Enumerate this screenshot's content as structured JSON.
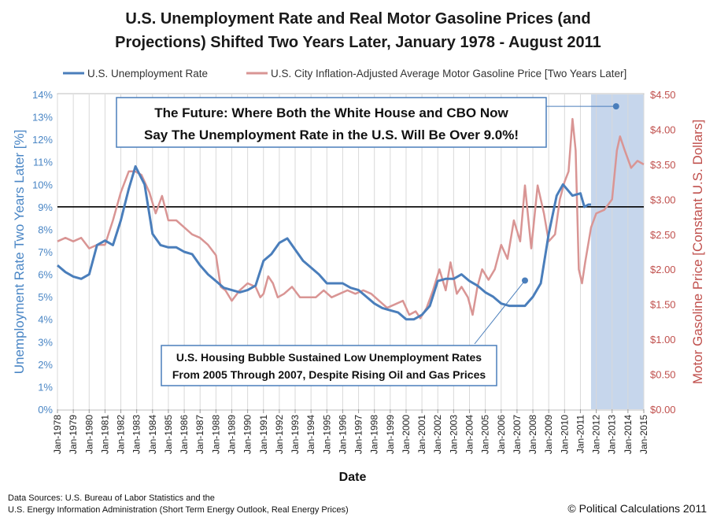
{
  "chart_data": {
    "type": "line",
    "title_line1": "U.S. Unemployment Rate and Real Motor Gasoline Prices (and",
    "title_line2": "Projections) Shifted Two Years Later, January 1978 - August 2011",
    "xlabel": "Date",
    "ylabel_left": "Unemployment Rate Two Years Later [%]",
    "ylabel_right": "Motor Gasoline Price [Constant U.S. Dollars]",
    "x_ticks": [
      "Jan-1978",
      "Jan-1979",
      "Jan-1980",
      "Jan-1981",
      "Jan-1982",
      "Jan-1983",
      "Jan-1984",
      "Jan-1985",
      "Jan-1986",
      "Jan-1987",
      "Jan-1988",
      "Jan-1989",
      "Jan-1990",
      "Jan-1991",
      "Jan-1992",
      "Jan-1993",
      "Jan-1994",
      "Jan-1995",
      "Jan-1996",
      "Jan-1997",
      "Jan-1998",
      "Jan-1999",
      "Jan-2000",
      "Jan-2001",
      "Jan-2002",
      "Jan-2003",
      "Jan-2004",
      "Jan-2005",
      "Jan-2006",
      "Jan-2007",
      "Jan-2008",
      "Jan-2009",
      "Jan-2010",
      "Jan-2011",
      "Jan-2012",
      "Jan-2013",
      "Jan-2014",
      "Jan-2015"
    ],
    "xlim": [
      1978,
      2015
    ],
    "y_left_ticks": [
      "0%",
      "1%",
      "2%",
      "3%",
      "4%",
      "5%",
      "6%",
      "7%",
      "8%",
      "9%",
      "10%",
      "11%",
      "12%",
      "13%",
      "14%"
    ],
    "ylim_left": [
      0,
      14
    ],
    "y_right_ticks": [
      "$0.00",
      "$0.50",
      "$1.00",
      "$1.50",
      "$2.00",
      "$2.50",
      "$3.00",
      "$3.50",
      "$4.00",
      "$4.50"
    ],
    "ylim_right": [
      0,
      4.5
    ],
    "reference_line_left": 9,
    "projection_shading_start": 2011.67,
    "legend_position": "top",
    "series": [
      {
        "name": "U.S. Unemployment Rate",
        "axis": "left",
        "color": "#4a7ebb",
        "x": [
          1978.0,
          1978.5,
          1979.0,
          1979.5,
          1980.0,
          1980.5,
          1981.0,
          1981.5,
          1982.0,
          1982.5,
          1982.92,
          1983.5,
          1984.0,
          1984.5,
          1985.0,
          1985.5,
          1986.0,
          1986.5,
          1987.0,
          1987.5,
          1988.0,
          1988.5,
          1989.0,
          1989.5,
          1990.0,
          1990.5,
          1991.0,
          1991.5,
          1992.0,
          1992.5,
          1993.0,
          1993.5,
          1994.0,
          1994.5,
          1995.0,
          1995.5,
          1996.0,
          1996.5,
          1997.0,
          1997.5,
          1998.0,
          1998.5,
          1999.0,
          1999.5,
          2000.0,
          2000.5,
          2001.0,
          2001.5,
          2002.0,
          2002.5,
          2003.0,
          2003.5,
          2004.0,
          2004.5,
          2005.0,
          2005.5,
          2006.0,
          2006.5,
          2007.0,
          2007.5,
          2008.0,
          2008.5,
          2009.0,
          2009.5,
          2009.9,
          2010.5,
          2011.0,
          2011.25,
          2011.5,
          2011.67
        ],
        "values": [
          6.4,
          6.1,
          5.9,
          5.8,
          6.0,
          7.3,
          7.5,
          7.3,
          8.4,
          9.8,
          10.8,
          10.0,
          7.8,
          7.3,
          7.2,
          7.2,
          7.0,
          6.9,
          6.4,
          6.0,
          5.7,
          5.4,
          5.3,
          5.2,
          5.3,
          5.5,
          6.6,
          6.9,
          7.4,
          7.6,
          7.1,
          6.6,
          6.3,
          6.0,
          5.6,
          5.6,
          5.6,
          5.4,
          5.3,
          5.0,
          4.7,
          4.5,
          4.4,
          4.3,
          4.0,
          4.0,
          4.2,
          4.6,
          5.7,
          5.8,
          5.8,
          6.0,
          5.7,
          5.5,
          5.2,
          5.0,
          4.7,
          4.6,
          4.6,
          4.6,
          5.0,
          5.6,
          7.8,
          9.5,
          10.0,
          9.5,
          9.6,
          9.0,
          9.1,
          9.1
        ]
      },
      {
        "name": "U.S. City Inflation-Adjusted Average Motor Gasoline Price [Two Years Later]",
        "axis": "right",
        "color": "#d99594",
        "x": [
          1978.0,
          1978.5,
          1979.0,
          1979.5,
          1980.0,
          1980.5,
          1981.0,
          1981.5,
          1982.0,
          1982.5,
          1982.9,
          1983.3,
          1983.8,
          1984.2,
          1984.6,
          1985.0,
          1985.5,
          1986.0,
          1986.5,
          1987.0,
          1987.5,
          1988.0,
          1988.3,
          1988.6,
          1989.0,
          1989.5,
          1990.0,
          1990.5,
          1990.8,
          1991.0,
          1991.3,
          1991.6,
          1991.9,
          1992.3,
          1992.8,
          1993.3,
          1993.8,
          1994.3,
          1994.8,
          1995.3,
          1995.8,
          1996.3,
          1996.8,
          1997.3,
          1997.8,
          1998.3,
          1998.8,
          1999.3,
          1999.8,
          2000.2,
          2000.6,
          2000.9,
          2001.3,
          2001.7,
          2002.1,
          2002.5,
          2002.8,
          2003.2,
          2003.5,
          2003.9,
          2004.2,
          2004.5,
          2004.8,
          2005.2,
          2005.6,
          2006.0,
          2006.4,
          2006.8,
          2007.2,
          2007.5,
          2007.9,
          2008.3,
          2008.7,
          2009.0,
          2009.4,
          2009.7,
          2010.0,
          2010.25,
          2010.5,
          2010.7,
          2010.9,
          2011.1,
          2011.3,
          2011.67,
          2012.0,
          2012.5,
          2013.0,
          2013.3,
          2013.5,
          2013.8,
          2014.2,
          2014.6,
          2015.0
        ],
        "values": [
          2.4,
          2.45,
          2.4,
          2.45,
          2.3,
          2.35,
          2.35,
          2.7,
          3.1,
          3.4,
          3.4,
          3.35,
          3.1,
          2.8,
          3.05,
          2.7,
          2.7,
          2.6,
          2.5,
          2.45,
          2.35,
          2.2,
          1.75,
          1.7,
          1.55,
          1.7,
          1.8,
          1.75,
          1.6,
          1.65,
          1.9,
          1.8,
          1.6,
          1.65,
          1.75,
          1.6,
          1.6,
          1.6,
          1.7,
          1.6,
          1.65,
          1.7,
          1.65,
          1.7,
          1.65,
          1.55,
          1.45,
          1.5,
          1.55,
          1.35,
          1.4,
          1.3,
          1.45,
          1.7,
          2.0,
          1.7,
          2.1,
          1.65,
          1.75,
          1.6,
          1.35,
          1.75,
          2.0,
          1.85,
          2.0,
          2.35,
          2.15,
          2.7,
          2.4,
          3.2,
          2.3,
          3.2,
          2.8,
          2.4,
          2.5,
          3.0,
          3.25,
          3.4,
          4.15,
          3.7,
          2.0,
          1.8,
          2.1,
          2.6,
          2.8,
          2.85,
          3.0,
          3.7,
          3.9,
          3.7,
          3.45,
          3.55,
          3.5
        ]
      }
    ],
    "annotations": {
      "future_line1": "The Future: Where Both the White House and CBO Now",
      "future_line2": "Say The Unemployment  Rate in the U.S. Will Be Over 9.0%!",
      "future_point": {
        "x": 2013.25,
        "y_right": 4.33
      },
      "housing_line1": "U.S. Housing Bubble Sustained Low Unemployment Rates",
      "housing_line2": "From 2005 Through 2007, Despite Rising Oil and Gas Prices",
      "housing_point": {
        "x": 2007.5,
        "y_right": 1.84
      }
    }
  },
  "footer": {
    "sources_line1": "Data Sources: U.S.  Bureau of Labor Statistics and the",
    "sources_line2": "U.S. Energy  Information Administration (Short Term Energy Outlook, Real Energy Prices)",
    "copyright": "© Political Calculations 2011"
  },
  "colors": {
    "unemployment": "#4a7ebb",
    "gasoline": "#d99594",
    "left_axis": "#4a86c5",
    "right_axis": "#c0504d",
    "projection_shading": "#c6d6ec"
  }
}
